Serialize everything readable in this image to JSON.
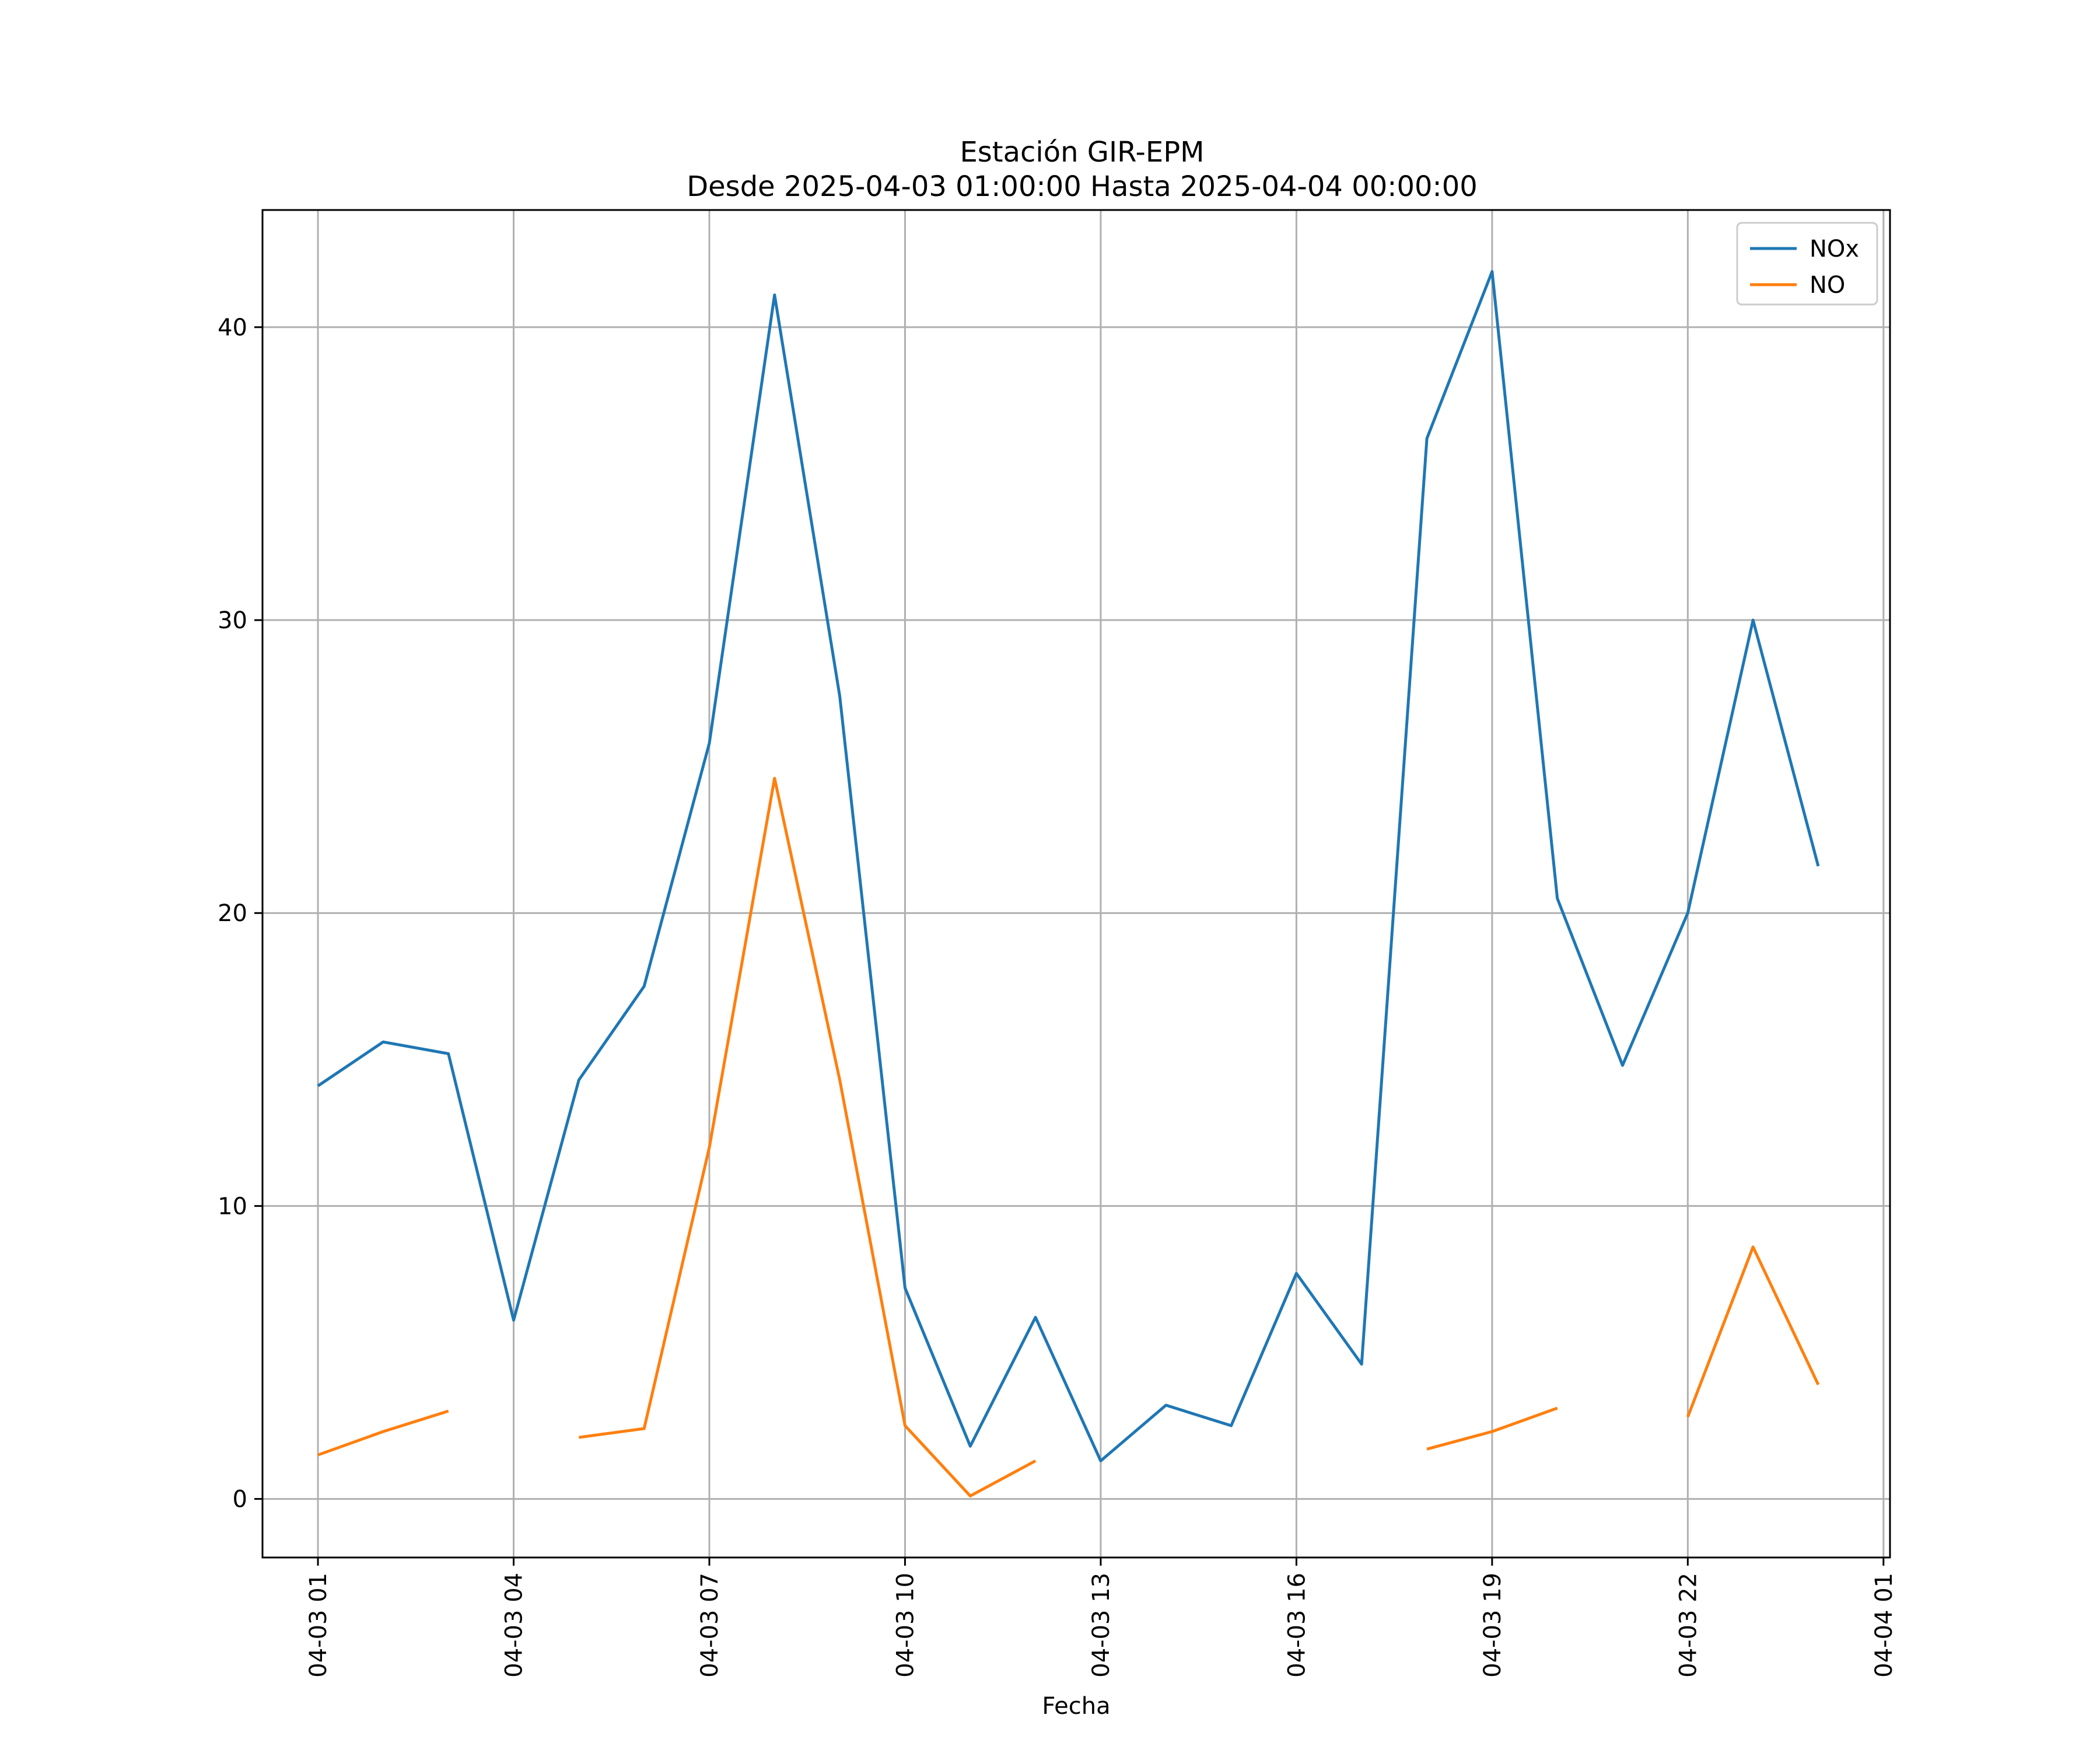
{
  "chart_data": {
    "type": "line",
    "title": "Estación GIR-EPM",
    "subtitle": "Desde 2025-04-03 01:00:00 Hasta 2025-04-04 00:00:00",
    "xlabel": "Fecha",
    "ylabel": "",
    "x": [
      "2025-04-03 01:00",
      "2025-04-03 02:00",
      "2025-04-03 03:00",
      "2025-04-03 04:00",
      "2025-04-03 05:00",
      "2025-04-03 06:00",
      "2025-04-03 07:00",
      "2025-04-03 08:00",
      "2025-04-03 09:00",
      "2025-04-03 10:00",
      "2025-04-03 11:00",
      "2025-04-03 12:00",
      "2025-04-03 13:00",
      "2025-04-03 14:00",
      "2025-04-03 15:00",
      "2025-04-03 16:00",
      "2025-04-03 17:00",
      "2025-04-03 18:00",
      "2025-04-03 19:00",
      "2025-04-03 20:00",
      "2025-04-03 21:00",
      "2025-04-03 22:00",
      "2025-04-03 23:00",
      "2025-04-04 00:00"
    ],
    "series": [
      {
        "name": "NOx",
        "color": "#1f77b4",
        "values": [
          14.1,
          15.6,
          15.2,
          6.1,
          14.3,
          17.5,
          25.8,
          41.1,
          27.4,
          7.2,
          1.8,
          6.2,
          1.3,
          3.2,
          2.5,
          7.7,
          4.6,
          36.2,
          41.9,
          20.5,
          14.8,
          20.0,
          30.0,
          21.6
        ]
      },
      {
        "name": "NO",
        "color": "#ff7f0e",
        "values": [
          1.5,
          2.3,
          3.0,
          null,
          2.1,
          2.4,
          12.0,
          24.6,
          14.3,
          2.5,
          0.1,
          1.3,
          null,
          null,
          null,
          null,
          null,
          1.7,
          2.3,
          3.1,
          null,
          2.8,
          8.6,
          3.9
        ]
      }
    ],
    "x_ticks": [
      "04-03 01",
      "04-03 04",
      "04-03 07",
      "04-03 10",
      "04-03 13",
      "04-03 16",
      "04-03 19",
      "04-03 22",
      "04-04 01"
    ],
    "y_ticks": [
      0,
      10,
      20,
      30,
      40
    ],
    "xlim": [
      "2025-04-03 00:09",
      "2025-04-04 01:06"
    ],
    "ylim": [
      -2.0,
      44.0
    ],
    "grid": true,
    "legend": "top-right"
  }
}
